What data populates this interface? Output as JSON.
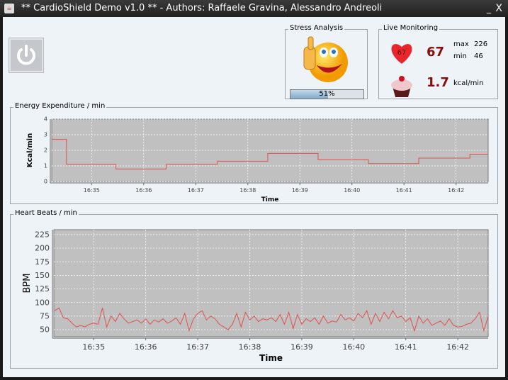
{
  "window": {
    "title": "** CardioShield Demo v1.0 ** - Authors: Raffaele Gravina, Alessandro Andreoli",
    "minimize": "_",
    "close": "X"
  },
  "power_button": {
    "icon": "power-icon"
  },
  "stress": {
    "title": "Stress Analysis",
    "icon": "thumbs-up-smiley-icon",
    "progress_percent": 51,
    "progress_label": "51%"
  },
  "live": {
    "title": "Live Monitoring",
    "heart_icon": "heart-icon",
    "heart_inner": "67",
    "bpm": "67",
    "max_label": "max",
    "max_value": "226",
    "min_label": "min",
    "min_value": "46",
    "cupcake_icon": "cupcake-icon",
    "kcal": "1.7",
    "kcal_unit": "kcal/min"
  },
  "colors": {
    "line": "#e05050",
    "plot_bg": "#c0c0c0",
    "value": "#8b0e0e"
  },
  "chart_data": [
    {
      "type": "line",
      "panel_title": "Energy Expenditure / min",
      "xlabel": "Time",
      "ylabel": "Kcal/min",
      "ylim": [
        0,
        4
      ],
      "xlim": [
        "16:34:14",
        "16:42:37"
      ],
      "yticks": [
        0,
        1,
        2,
        3,
        4
      ],
      "xticks": [
        "16:35",
        "16:36",
        "16:37",
        "16:38",
        "16:39",
        "16:40",
        "16:41",
        "16:42"
      ],
      "grid": true,
      "step": true,
      "x": [
        "16:34:14",
        "16:34:31",
        "16:35:28",
        "16:36:26",
        "16:37:25",
        "16:38:23",
        "16:39:21",
        "16:40:19",
        "16:41:17",
        "16:42:16",
        "16:42:37"
      ],
      "y": [
        2.7,
        1.1,
        0.8,
        1.1,
        1.3,
        1.8,
        1.4,
        1.15,
        1.5,
        1.75,
        1.75
      ]
    },
    {
      "type": "line",
      "panel_title": "Heart Beats / min",
      "xlabel": "Time",
      "ylabel": "BPM",
      "ylim": [
        37,
        234
      ],
      "xlim": [
        "16:34:14",
        "16:42:35"
      ],
      "yticks": [
        50,
        75,
        100,
        125,
        150,
        175,
        200,
        225
      ],
      "xticks": [
        "16:35",
        "16:36",
        "16:37",
        "16:38",
        "16:39",
        "16:40",
        "16:41",
        "16:42"
      ],
      "grid": true,
      "step": false,
      "x_start": "16:34:15",
      "x_step_seconds": 5,
      "y": [
        85,
        90,
        72,
        70,
        62,
        55,
        58,
        55,
        60,
        62,
        60,
        90,
        55,
        75,
        65,
        80,
        70,
        62,
        65,
        68,
        62,
        70,
        60,
        68,
        64,
        70,
        62,
        66,
        72,
        60,
        80,
        48,
        70,
        80,
        85,
        68,
        75,
        70,
        60,
        55,
        50,
        60,
        80,
        55,
        82,
        68,
        75,
        65,
        70,
        68,
        72,
        65,
        78,
        60,
        82,
        52,
        78,
        60,
        70,
        65,
        72,
        60,
        75,
        62,
        66,
        64,
        78,
        68,
        72,
        66,
        80,
        72,
        85,
        60,
        80,
        65,
        82,
        70,
        85,
        72,
        75,
        65,
        72,
        48,
        75,
        62,
        70,
        58,
        62,
        66,
        58,
        70,
        58,
        55,
        56,
        60,
        62,
        70,
        82,
        48,
        75
      ]
    }
  ]
}
